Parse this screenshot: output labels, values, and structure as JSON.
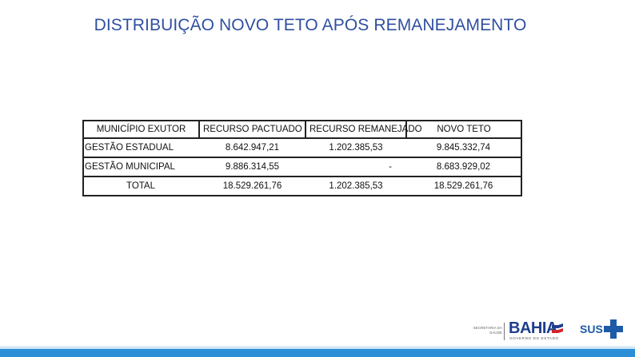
{
  "title": "DISTRIBUIÇÃO NOVO TETO APÓS REMANEJAMENTO",
  "table": {
    "headers": [
      "MUNICÍPIO EXUTOR",
      "RECURSO PACTUADO",
      "RECURSO REMANEJADO",
      "NOVO TETO"
    ],
    "rows": [
      [
        "GESTÃO ESTADUAL",
        "8.642.947,21",
        "1.202.385,53",
        "9.845.332,74"
      ],
      [
        "GESTÃO MUNICIPAL",
        "9.886.314,55",
        "-",
        "8.683.929,02"
      ]
    ],
    "total": [
      "TOTAL",
      "18.529.261,76",
      "1.202.385,53",
      "18.529.261,76"
    ]
  },
  "footer": {
    "secretaria_line1": "SECRETARIA DA",
    "secretaria_line2": "SAÚDE",
    "bahia_wordmark": "BAHIA",
    "governo_text": "GOVERNO DO ESTADO",
    "sus_wordmark": "SUS",
    "colors": {
      "bar": "#2a8fd6",
      "title": "#2f4f9f",
      "brand": "#1d3e8c"
    }
  }
}
